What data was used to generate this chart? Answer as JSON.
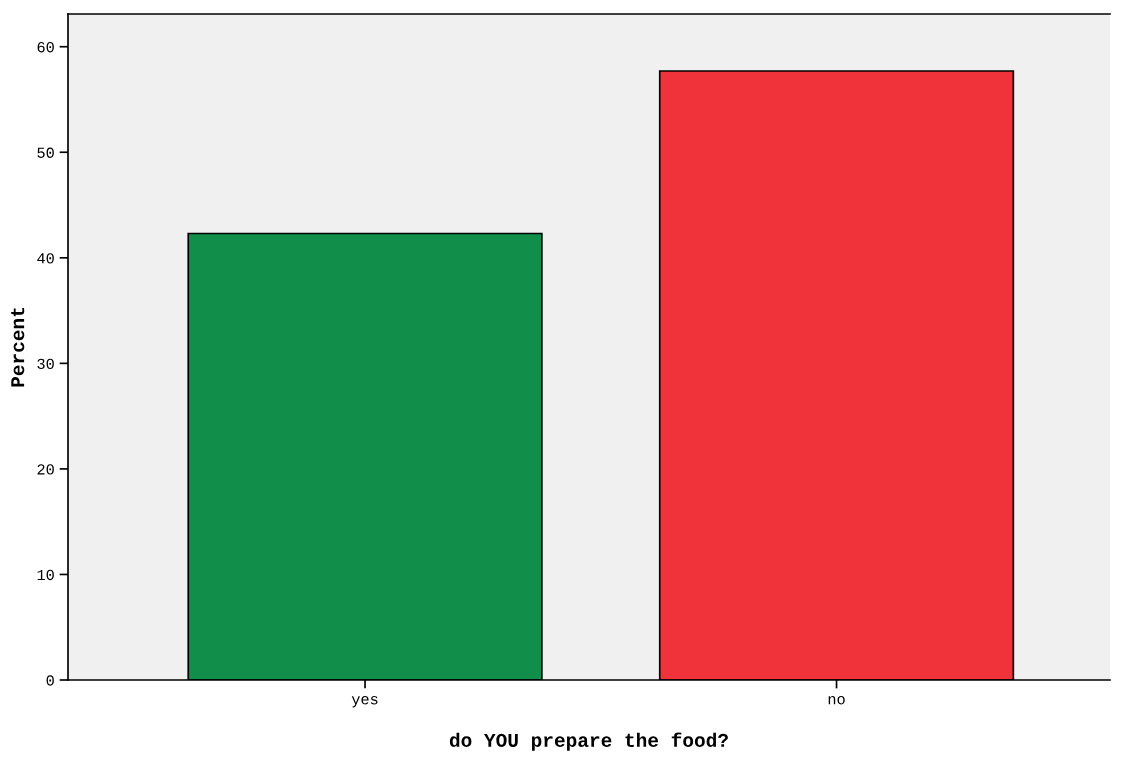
{
  "chart_data": {
    "type": "bar",
    "xlabel": "do YOU prepare the food?",
    "ylabel": "Percent",
    "categories": [
      "yes",
      "no"
    ],
    "values": [
      42.3,
      57.7
    ],
    "colors": [
      "#118e4a",
      "#f0333a"
    ],
    "ylim": [
      0,
      63.1
    ],
    "yticks": [
      0,
      10,
      20,
      30,
      40,
      50,
      60
    ],
    "grid": false,
    "legend": false
  }
}
